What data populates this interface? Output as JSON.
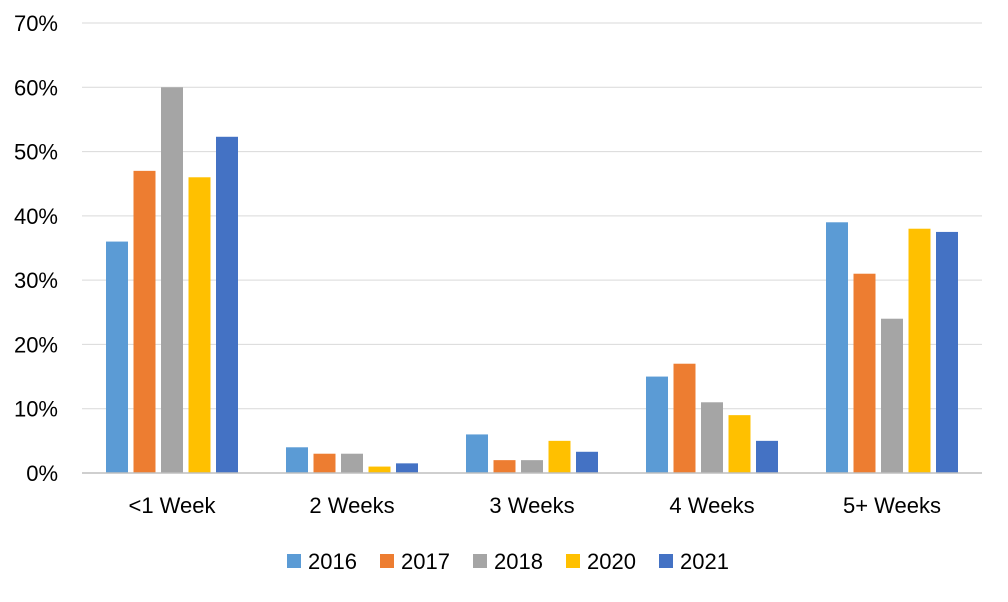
{
  "chart_data": {
    "type": "bar",
    "title": "",
    "xlabel": "",
    "ylabel": "",
    "categories": [
      "<1 Week",
      "2 Weeks",
      "3 Weeks",
      "4 Weeks",
      "5+ Weeks"
    ],
    "series": [
      {
        "name": "2016",
        "color": "#5b9bd5",
        "values": [
          36,
          4,
          6,
          15,
          39
        ]
      },
      {
        "name": "2017",
        "color": "#ed7d31",
        "values": [
          47,
          3,
          2,
          17,
          31
        ]
      },
      {
        "name": "2018",
        "color": "#a5a5a5",
        "values": [
          60,
          3,
          2,
          11,
          24
        ]
      },
      {
        "name": "2020",
        "color": "#ffc000",
        "values": [
          46,
          1,
          5,
          9,
          38
        ]
      },
      {
        "name": "2021",
        "color": "#4472c4",
        "values": [
          52.3,
          1.5,
          3.3,
          5,
          37.5
        ]
      }
    ],
    "ylim": [
      0,
      70
    ],
    "yticks": [
      "0%",
      "10%",
      "20%",
      "30%",
      "40%",
      "50%",
      "60%",
      "70%"
    ],
    "grid": true,
    "legend_position": "bottom"
  }
}
